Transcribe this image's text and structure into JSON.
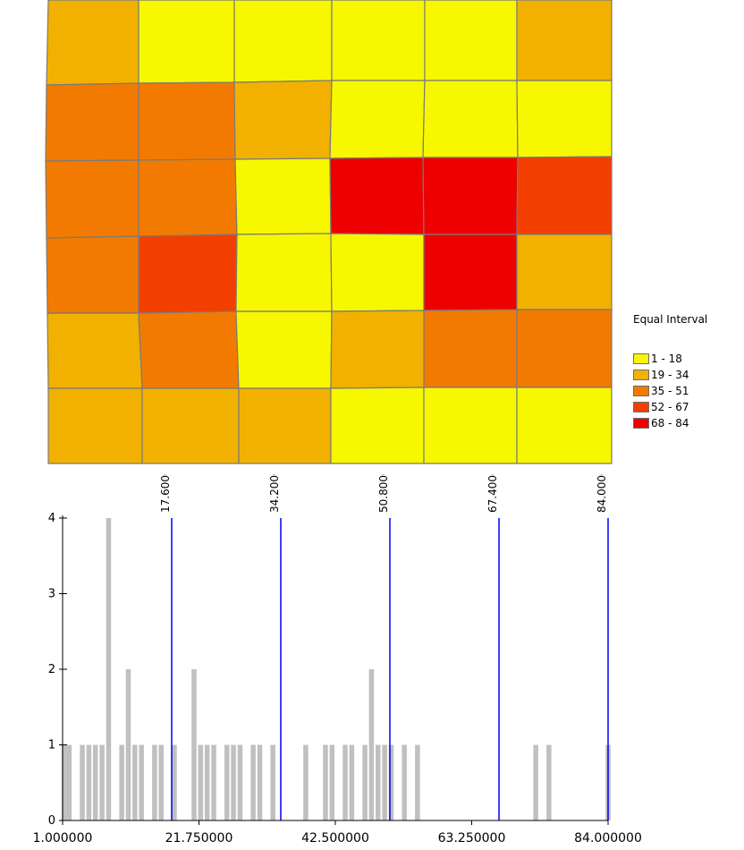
{
  "map": {
    "grid_colors": [
      [
        "#f2b100",
        "#f7f700",
        "#f7f700",
        "#f7f700",
        "#f7f700",
        "#f2b100"
      ],
      [
        "#f27a00",
        "#f27a00",
        "#f2b100",
        "#f7f700",
        "#f7f700",
        "#f7f700"
      ],
      [
        "#f27a00",
        "#f27a00",
        "#f7f700",
        "#ee0000",
        "#ee0000",
        "#f23f00"
      ],
      [
        "#f27a00",
        "#f23f00",
        "#f7f700",
        "#f7f700",
        "#ee0000",
        "#f2b100"
      ],
      [
        "#f2b100",
        "#f27a00",
        "#f7f700",
        "#f2b100",
        "#f27a00",
        "#f27a00"
      ],
      [
        "#f2b100",
        "#f2b100",
        "#f2b100",
        "#f7f700",
        "#f7f700",
        "#f7f700"
      ]
    ]
  },
  "legend": {
    "title": "Equal Interval",
    "items": [
      {
        "label": "1 - 18",
        "color": "#f7f700"
      },
      {
        "label": "19 - 34",
        "color": "#f2b100"
      },
      {
        "label": "35 - 51",
        "color": "#f27a00"
      },
      {
        "label": "52 - 67",
        "color": "#f23f00"
      },
      {
        "label": "68 - 84",
        "color": "#ee0000"
      }
    ]
  },
  "chart_data": {
    "type": "bar",
    "xlim": [
      1.0,
      84.0
    ],
    "ylim": [
      0,
      4
    ],
    "x_ticks": [
      "1.000000",
      "21.750000",
      "42.500000",
      "63.250000",
      "84.000000"
    ],
    "y_ticks": [
      "0",
      "1",
      "2",
      "3",
      "4"
    ],
    "bar_color": "#c0c0c0",
    "bars": [
      {
        "x": 1,
        "y": 1
      },
      {
        "x": 2,
        "y": 1
      },
      {
        "x": 4,
        "y": 1
      },
      {
        "x": 5,
        "y": 1
      },
      {
        "x": 6,
        "y": 1
      },
      {
        "x": 7,
        "y": 1
      },
      {
        "x": 8,
        "y": 4
      },
      {
        "x": 10,
        "y": 1
      },
      {
        "x": 11,
        "y": 2
      },
      {
        "x": 12,
        "y": 1
      },
      {
        "x": 13,
        "y": 1
      },
      {
        "x": 15,
        "y": 1
      },
      {
        "x": 16,
        "y": 1
      },
      {
        "x": 18,
        "y": 1
      },
      {
        "x": 21,
        "y": 2
      },
      {
        "x": 22,
        "y": 1
      },
      {
        "x": 23,
        "y": 1
      },
      {
        "x": 24,
        "y": 1
      },
      {
        "x": 26,
        "y": 1
      },
      {
        "x": 27,
        "y": 1
      },
      {
        "x": 28,
        "y": 1
      },
      {
        "x": 30,
        "y": 1
      },
      {
        "x": 31,
        "y": 1
      },
      {
        "x": 33,
        "y": 1
      },
      {
        "x": 38,
        "y": 1
      },
      {
        "x": 41,
        "y": 1
      },
      {
        "x": 42,
        "y": 1
      },
      {
        "x": 44,
        "y": 1
      },
      {
        "x": 45,
        "y": 1
      },
      {
        "x": 47,
        "y": 1
      },
      {
        "x": 48,
        "y": 2
      },
      {
        "x": 49,
        "y": 1
      },
      {
        "x": 50,
        "y": 1
      },
      {
        "x": 51,
        "y": 1
      },
      {
        "x": 53,
        "y": 1
      },
      {
        "x": 55,
        "y": 1
      },
      {
        "x": 73,
        "y": 1
      },
      {
        "x": 75,
        "y": 1
      },
      {
        "x": 84,
        "y": 1
      }
    ],
    "break_color": "#0000ee",
    "breaks": [
      {
        "value": 17.6,
        "label": "17.600000"
      },
      {
        "value": 34.2,
        "label": "34.200000"
      },
      {
        "value": 50.8,
        "label": "50.800000"
      },
      {
        "value": 67.4,
        "label": "67.400000"
      },
      {
        "value": 84.0,
        "label": "84.000000"
      }
    ]
  }
}
